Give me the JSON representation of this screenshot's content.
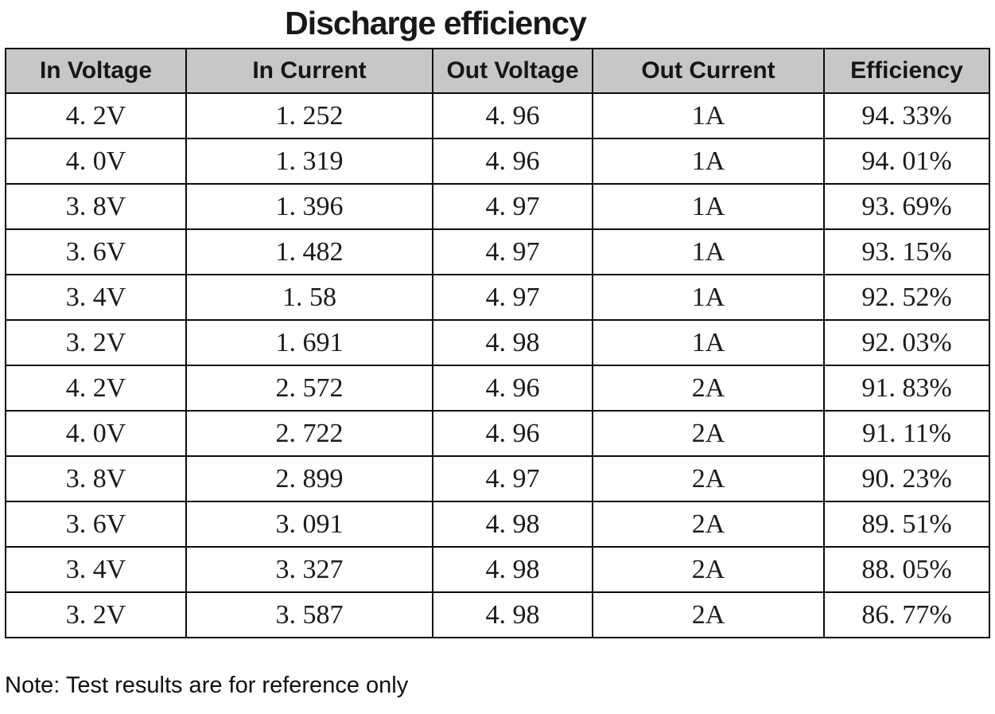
{
  "title": "Discharge efficiency",
  "note": "Note: Test results are for reference only",
  "colors": {
    "header_background": "#c7c7c7",
    "border": "#0c0c0c",
    "text": "#1b1b1b"
  },
  "table": {
    "columns": [
      "In Voltage",
      "In Current",
      "Out Voltage",
      "Out Current",
      "Efficiency"
    ],
    "rows": [
      [
        "4. 2V",
        "1. 252",
        "4. 96",
        "1A",
        "94. 33%"
      ],
      [
        "4. 0V",
        "1. 319",
        "4. 96",
        "1A",
        "94. 01%"
      ],
      [
        "3. 8V",
        "1. 396",
        "4. 97",
        "1A",
        "93. 69%"
      ],
      [
        "3. 6V",
        "1. 482",
        "4. 97",
        "1A",
        "93. 15%"
      ],
      [
        "3. 4V",
        "1. 58",
        "4. 97",
        "1A",
        "92. 52%"
      ],
      [
        "3. 2V",
        "1. 691",
        "4. 98",
        "1A",
        "92. 03%"
      ],
      [
        "4. 2V",
        "2. 572",
        "4. 96",
        "2A",
        "91. 83%"
      ],
      [
        "4. 0V",
        "2. 722",
        "4. 96",
        "2A",
        "91. 11%"
      ],
      [
        "3. 8V",
        "2. 899",
        "4. 97",
        "2A",
        "90. 23%"
      ],
      [
        "3. 6V",
        "3. 091",
        "4. 98",
        "2A",
        "89. 51%"
      ],
      [
        "3. 4V",
        "3. 327",
        "4. 98",
        "2A",
        "88. 05%"
      ],
      [
        "3. 2V",
        "3. 587",
        "4. 98",
        "2A",
        "86. 77%"
      ]
    ],
    "column_keys": [
      "in-voltage",
      "in-current",
      "out-voltage",
      "out-current",
      "efficiency"
    ]
  }
}
